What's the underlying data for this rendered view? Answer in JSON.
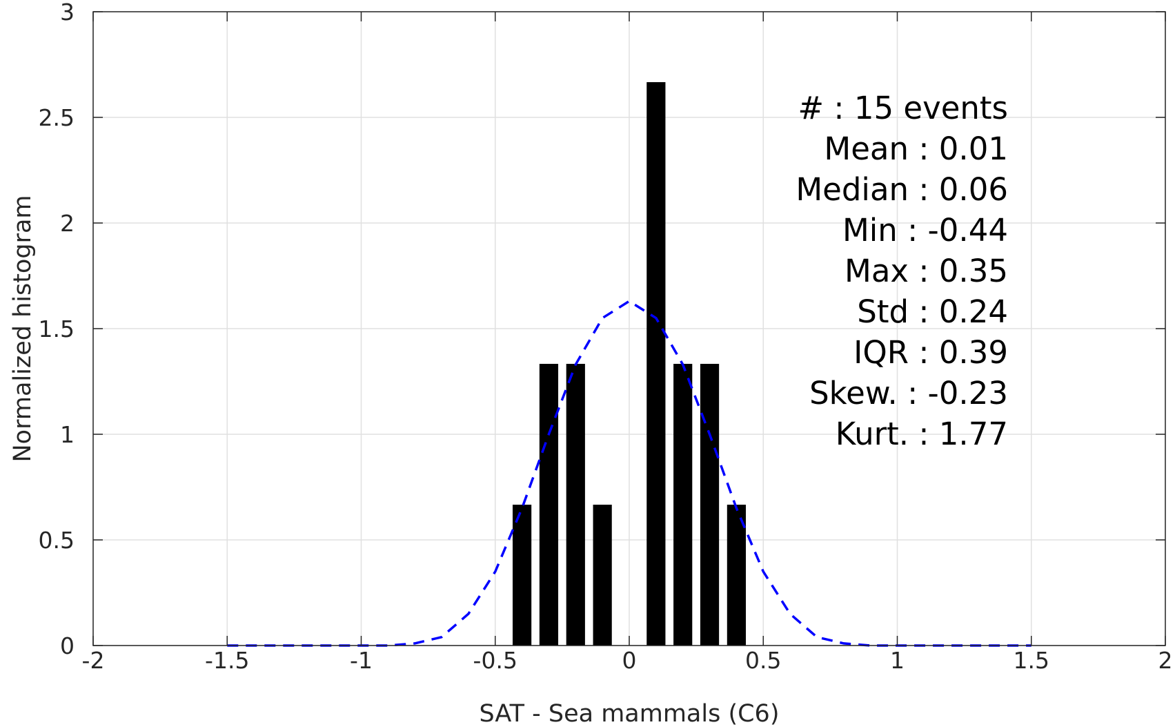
{
  "chart_data": {
    "type": "bar",
    "title": "",
    "xlabel": "SAT - Sea mammals (C6)",
    "ylabel": "Normalized histogram",
    "xlim": [
      -2,
      2
    ],
    "ylim": [
      0,
      3
    ],
    "xticks": [
      "-2",
      "-1.5",
      "-1",
      "-0.5",
      "0",
      "0.5",
      "1",
      "1.5",
      "2"
    ],
    "yticks": [
      "0",
      "0.5",
      "1",
      "1.5",
      "2",
      "2.5",
      "3"
    ],
    "grid": true,
    "bar_color": "#000000",
    "bars": [
      {
        "x": -0.4,
        "y": 0.6667
      },
      {
        "x": -0.3,
        "y": 1.3333
      },
      {
        "x": -0.2,
        "y": 1.3333
      },
      {
        "x": -0.1,
        "y": 0.6667
      },
      {
        "x": 0.1,
        "y": 2.6667
      },
      {
        "x": 0.2,
        "y": 1.3333
      },
      {
        "x": 0.3,
        "y": 1.3333
      },
      {
        "x": 0.4,
        "y": 0.6667
      }
    ],
    "series": [
      {
        "type": "line",
        "style": "dashed",
        "color": "#0000ff",
        "x": [
          -1.5,
          -1.3,
          -1.1,
          -1.0,
          -0.9,
          -0.8,
          -0.7,
          -0.6,
          -0.5,
          -0.4,
          -0.3,
          -0.2,
          -0.1,
          0.0,
          0.1,
          0.2,
          0.3,
          0.4,
          0.5,
          0.6,
          0.7,
          0.8,
          0.9,
          1.0,
          1.1,
          1.3,
          1.5
        ],
        "y": [
          0.0,
          0.0,
          0.0,
          0.0,
          0.0,
          0.01,
          0.04,
          0.15,
          0.35,
          0.65,
          1.0,
          1.33,
          1.55,
          1.63,
          1.55,
          1.33,
          1.0,
          0.65,
          0.35,
          0.15,
          0.04,
          0.01,
          0.0,
          0.0,
          0.0,
          0.0,
          0.0
        ]
      }
    ],
    "annotations": [
      "#  : 15 events",
      "Mean : 0.01",
      "Median : 0.06",
      "Min : -0.44",
      "Max : 0.35",
      "Std : 0.24",
      "IQR : 0.39",
      "Skew. : -0.23",
      "Kurt. : 1.77"
    ]
  }
}
